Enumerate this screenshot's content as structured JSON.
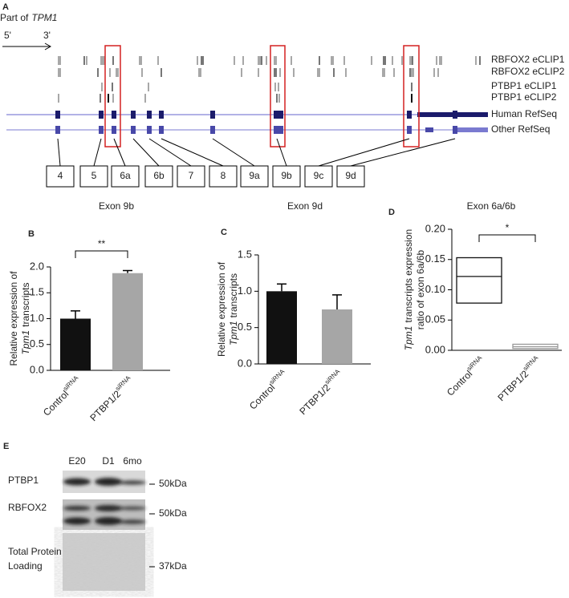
{
  "panel_a": {
    "label": "A",
    "title": {
      "text": "Part of",
      "italic": "TPM1"
    },
    "five_prime": "5'",
    "three_prime": "3'",
    "tracks": [
      "RBFOX2 eCLIP1",
      "RBFOX2 eCLIP2",
      "PTBP1 eCLIP1",
      "PTBP1 eCLIP2",
      "Human RefSeq",
      "Other RefSeq"
    ],
    "exons": [
      "4",
      "5",
      "6a",
      "6b",
      "7",
      "8",
      "9a",
      "9b",
      "9c",
      "9d"
    ]
  },
  "chart_data": [
    {
      "type": "bar",
      "panel": "B",
      "title": "Exon 9b",
      "ylabel": [
        {
          "text": "Relative expression of"
        },
        {
          "italic": "Tpm1",
          "text": "transcripts"
        }
      ],
      "categories": [
        "Control",
        "PTBP1/2"
      ],
      "superscript": "siRNA",
      "values": [
        1.0,
        1.88
      ],
      "errors": [
        0.15,
        0.05
      ],
      "colors": [
        "#111111",
        "#a6a6a6"
      ],
      "ylim": [
        0,
        2.0
      ],
      "yticks": [
        {
          "value": 0,
          "label": "0.0"
        },
        {
          "value": 0.5,
          "label": "0.5"
        },
        {
          "value": 1.0,
          "label": "1.0"
        },
        {
          "value": 1.5,
          "label": "1.5"
        },
        {
          "value": 2.0,
          "label": "2.0"
        }
      ],
      "significance": "**"
    },
    {
      "type": "bar",
      "panel": "C",
      "title": "Exon 9d",
      "ylabel": [
        {
          "text": "Relative  expression of"
        },
        {
          "italic": "Tpm1",
          "text": "transcripts"
        }
      ],
      "categories": [
        "Control",
        "PTBP1/2"
      ],
      "superscript": "siRNA",
      "values": [
        1.0,
        0.75
      ],
      "errors": [
        0.1,
        0.2
      ],
      "colors": [
        "#111111",
        "#a6a6a6"
      ],
      "ylim": [
        0,
        1.5
      ],
      "yticks": [
        {
          "value": 0,
          "label": "0.0"
        },
        {
          "value": 0.5,
          "label": "0.5"
        },
        {
          "value": 1.0,
          "label": "1.0"
        },
        {
          "value": 1.5,
          "label": "1.5"
        }
      ]
    },
    {
      "type": "box",
      "panel": "D",
      "title": "Exon 6a/6b",
      "ylabel": [
        {
          "italic": "Tpm1",
          "text": "transcripts expression"
        },
        {
          "text": "ratio of exon 6a/6b"
        }
      ],
      "categories": [
        "Control",
        "PTBP1/2"
      ],
      "superscript": "siRNA",
      "boxes": [
        {
          "q1": 0.078,
          "median": 0.122,
          "q3": 0.153
        },
        {
          "q1": 0.003,
          "median": 0.006,
          "q3": 0.01
        }
      ],
      "colors": [
        "#111111",
        "#999999"
      ],
      "ylim": [
        0,
        0.2
      ],
      "yticks": [
        {
          "value": 0,
          "label": "0.00"
        },
        {
          "value": 0.05,
          "label": "0.05"
        },
        {
          "value": 0.1,
          "label": "0.10"
        },
        {
          "value": 0.15,
          "label": "0.15"
        },
        {
          "value": 0.2,
          "label": "0.20"
        }
      ],
      "significance": "*"
    }
  ],
  "panel_e": {
    "label": "E",
    "lanes": [
      "E20",
      "D1",
      "6mo"
    ],
    "rows": [
      {
        "name": [
          "PTBP1"
        ],
        "marker": "50kDa"
      },
      {
        "name": [
          "RBFOX2"
        ],
        "marker": "50kDa"
      },
      {
        "name": [
          "Total Protein",
          "Loading"
        ],
        "marker": "37kDa"
      }
    ]
  }
}
